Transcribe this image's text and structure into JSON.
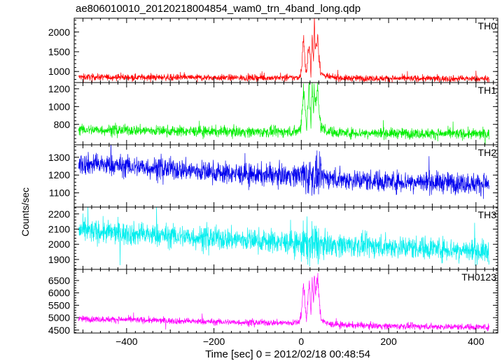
{
  "chart_data": {
    "type": "line",
    "title": "ae806010010_20120218004854_wam0_trn_4band_long.qdp",
    "xlabel": "Time [sec] 0 = 2012/02/18 00:48:54",
    "ylabel": "Counts/sec",
    "xlim": [
      -520,
      450
    ],
    "xticks": [
      -400,
      -200,
      0,
      200,
      400
    ],
    "grid": false,
    "panels": [
      {
        "name": "TH0",
        "color": "#ff0000",
        "ylim": [
          720,
          2350
        ],
        "yticks": [
          1000,
          1500,
          2000
        ],
        "x": [
          -510,
          -400,
          -300,
          -200,
          -100,
          -20,
          -5,
          0,
          5,
          10,
          12,
          15,
          18,
          20,
          22,
          25,
          28,
          30,
          32,
          35,
          38,
          40,
          45,
          60,
          100,
          200,
          300,
          430
        ],
        "y": [
          860,
          855,
          850,
          845,
          840,
          840,
          850,
          1000,
          1850,
          1050,
          950,
          1300,
          1750,
          1450,
          1000,
          1900,
          1200,
          2350,
          1550,
          1700,
          1900,
          1450,
          950,
          860,
          830,
          825,
          820,
          815
        ]
      },
      {
        "name": "TH1",
        "color": "#00ee00",
        "ylim": [
          570,
          1270
        ],
        "yticks": [
          800,
          1000,
          1200
        ],
        "x": [
          -510,
          -400,
          -300,
          -200,
          -100,
          -20,
          -5,
          0,
          5,
          10,
          12,
          15,
          18,
          20,
          22,
          25,
          28,
          30,
          32,
          35,
          38,
          40,
          45,
          60,
          100,
          200,
          300,
          430
        ],
        "y": [
          740,
          735,
          725,
          720,
          715,
          715,
          730,
          820,
          1200,
          900,
          800,
          1020,
          1200,
          980,
          820,
          1220,
          950,
          1240,
          1050,
          1100,
          1200,
          950,
          780,
          720,
          705,
          700,
          695,
          690
        ]
      },
      {
        "name": "TH2",
        "color": "#0000ee",
        "ylim": [
          1020,
          1370
        ],
        "yticks": [
          1100,
          1200,
          1300
        ],
        "x": [
          -510,
          -400,
          -300,
          -200,
          -100,
          0,
          100,
          200,
          300,
          430
        ],
        "y": [
          1265,
          1250,
          1235,
          1215,
          1200,
          1200,
          1175,
          1165,
          1160,
          1150
        ]
      },
      {
        "name": "TH3",
        "color": "#00eeee",
        "ylim": [
          1835,
          2245
        ],
        "yticks": [
          1900,
          2000,
          2100,
          2200
        ],
        "x": [
          -510,
          -400,
          -300,
          -200,
          -100,
          0,
          100,
          200,
          300,
          430
        ],
        "y": [
          2090,
          2070,
          2055,
          2040,
          2025,
          2005,
          1995,
          1985,
          1975,
          1950
        ]
      },
      {
        "name": "TH0123",
        "color": "#ff00ff",
        "ylim": [
          4380,
          6950
        ],
        "yticks": [
          4500,
          5000,
          5500,
          6000,
          6500
        ],
        "x": [
          -510,
          -400,
          -300,
          -200,
          -100,
          -20,
          -5,
          0,
          5,
          10,
          12,
          15,
          18,
          20,
          22,
          25,
          28,
          30,
          32,
          35,
          38,
          40,
          45,
          60,
          100,
          200,
          300,
          430
        ],
        "y": [
          4950,
          4920,
          4870,
          4830,
          4800,
          4790,
          4820,
          5100,
          6400,
          5300,
          5000,
          5700,
          6400,
          5900,
          5100,
          6600,
          5600,
          6900,
          6000,
          6300,
          6600,
          5900,
          4950,
          4750,
          4700,
          4660,
          4640,
          4620
        ]
      }
    ]
  }
}
